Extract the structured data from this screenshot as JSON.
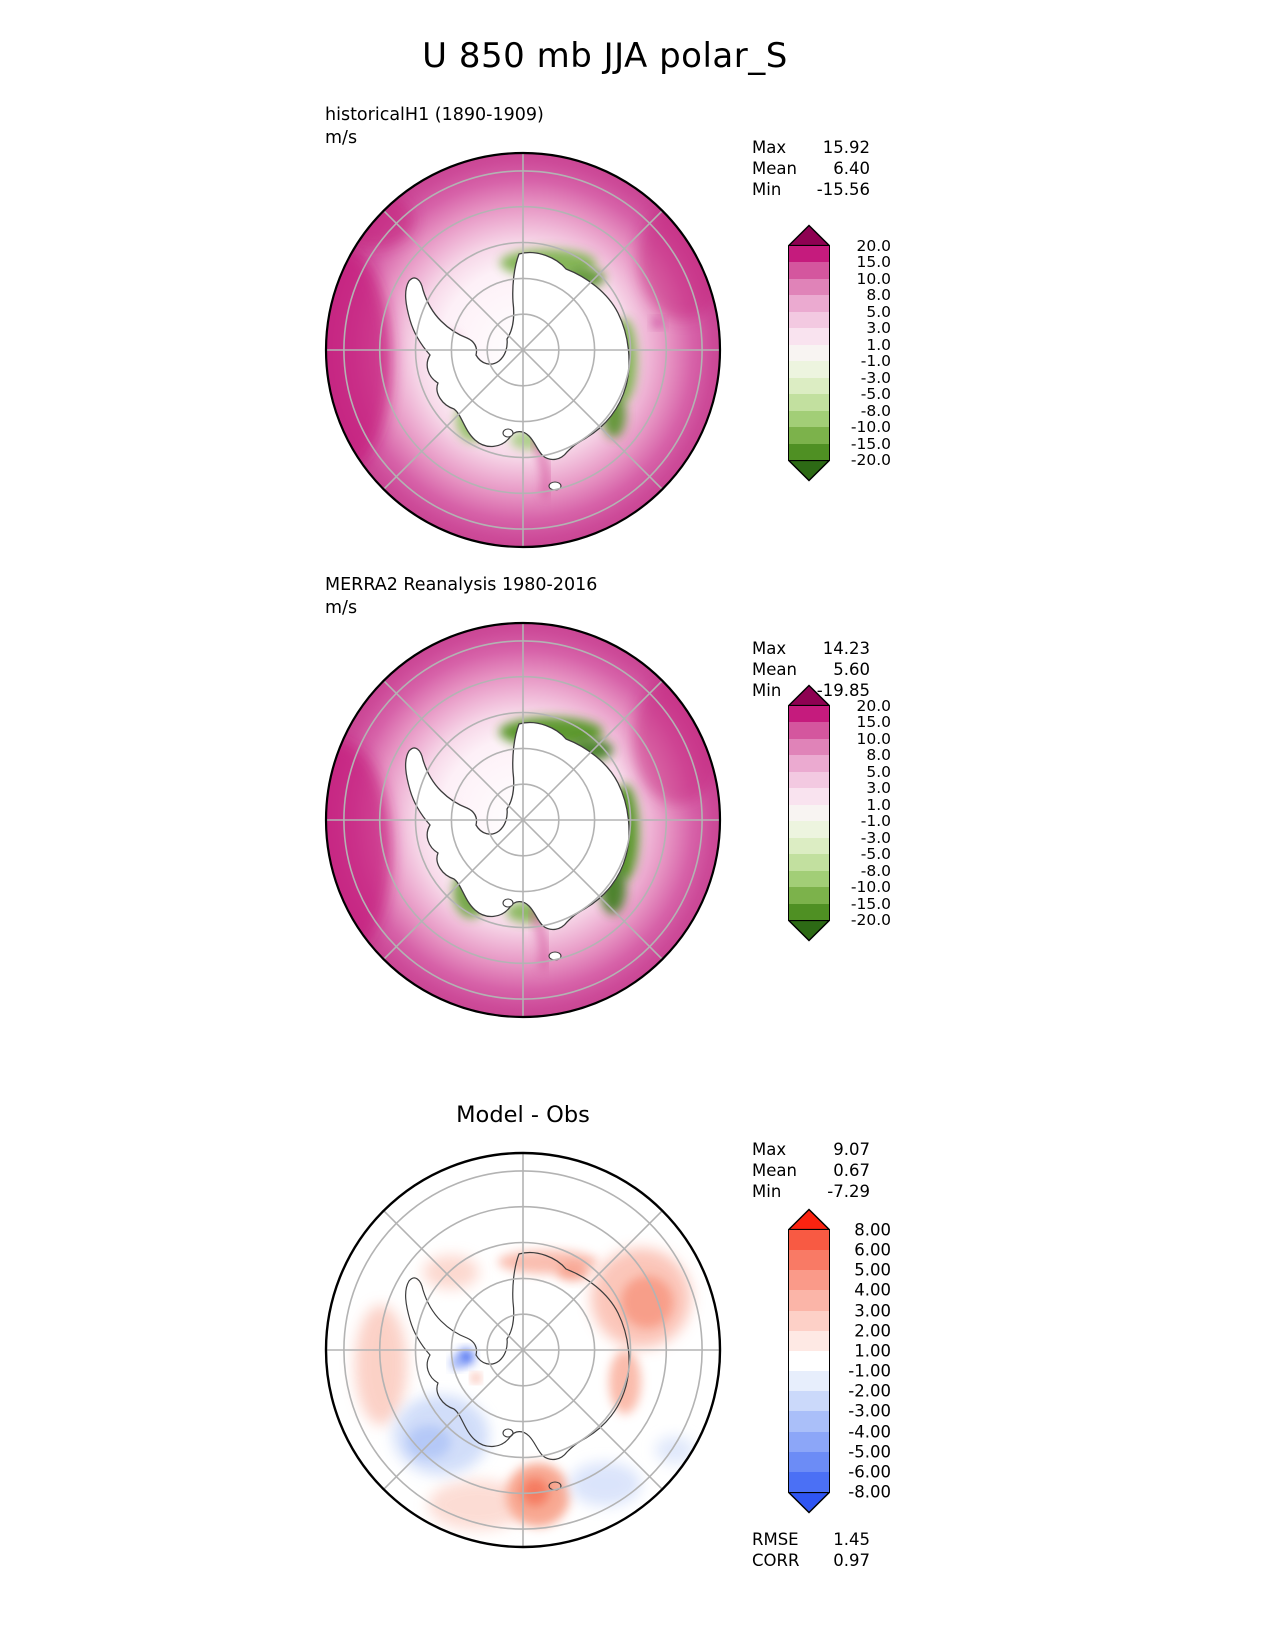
{
  "figure_title": "U 850 mb JJA polar_S",
  "chart_data": [
    {
      "type": "polar_stereographic_contour_map",
      "title": "historicalH1 (1890-1909)",
      "units": "m/s",
      "stats": [
        {
          "label": "Max",
          "value": "15.92"
        },
        {
          "label": "Mean",
          "value": "6.40"
        },
        {
          "label": "Min",
          "value": "-15.56"
        }
      ],
      "colorbar": {
        "tick_labels": [
          "20.0",
          "15.0",
          "10.0",
          "8.0",
          "5.0",
          "3.0",
          "1.0",
          "-1.0",
          "-3.0",
          "-5.0",
          "-8.0",
          "-10.0",
          "-15.0",
          "-20.0"
        ],
        "over_color": "#8e0152",
        "segment_colors": [
          "#c51b7d",
          "#d4569e",
          "#e083b8",
          "#ebaad0",
          "#f3c9e1",
          "#f9e3ef",
          "#f8f4f2",
          "#edf4df",
          "#dcedc3",
          "#c2e09f",
          "#a2ce77",
          "#7cb24b",
          "#4f9023"
        ],
        "under_color": "#2d6a15"
      }
    },
    {
      "type": "polar_stereographic_contour_map",
      "title": "MERRA2 Reanalysis 1980-2016",
      "units": "m/s",
      "stats": [
        {
          "label": "Max",
          "value": "14.23"
        },
        {
          "label": "Mean",
          "value": "5.60"
        },
        {
          "label": "Min",
          "value": "-19.85"
        }
      ],
      "colorbar": {
        "tick_labels": [
          "20.0",
          "15.0",
          "10.0",
          "8.0",
          "5.0",
          "3.0",
          "1.0",
          "-1.0",
          "-3.0",
          "-5.0",
          "-8.0",
          "-10.0",
          "-15.0",
          "-20.0"
        ],
        "over_color": "#8e0152",
        "segment_colors": [
          "#c51b7d",
          "#d4569e",
          "#e083b8",
          "#ebaad0",
          "#f3c9e1",
          "#f9e3ef",
          "#f8f4f2",
          "#edf4df",
          "#dcedc3",
          "#c2e09f",
          "#a2ce77",
          "#7cb24b",
          "#4f9023"
        ],
        "under_color": "#2d6a15"
      }
    },
    {
      "type": "polar_stereographic_contour_map",
      "title": "Model - Obs",
      "stats": [
        {
          "label": "Max",
          "value": "9.07"
        },
        {
          "label": "Mean",
          "value": "0.67"
        },
        {
          "label": "Min",
          "value": "-7.29"
        }
      ],
      "colorbar": {
        "tick_labels": [
          "8.00",
          "6.00",
          "5.00",
          "4.00",
          "3.00",
          "2.00",
          "1.00",
          "-1.00",
          "-2.00",
          "-3.00",
          "-4.00",
          "-5.00",
          "-6.00",
          "-8.00"
        ],
        "over_color": "#fb2310",
        "segment_colors": [
          "#f85a43",
          "#f97a65",
          "#fa9a89",
          "#fbb5a8",
          "#fdd0c7",
          "#fee9e4",
          "#ffffff",
          "#e7eefc",
          "#cbd9fa",
          "#aabff9",
          "#8ca6f8",
          "#6c8cf6",
          "#4b70f5"
        ],
        "under_color": "#2f55f3"
      },
      "metrics": [
        {
          "label": "RMSE",
          "value": "1.45"
        },
        {
          "label": "CORR",
          "value": "0.97"
        }
      ]
    }
  ]
}
